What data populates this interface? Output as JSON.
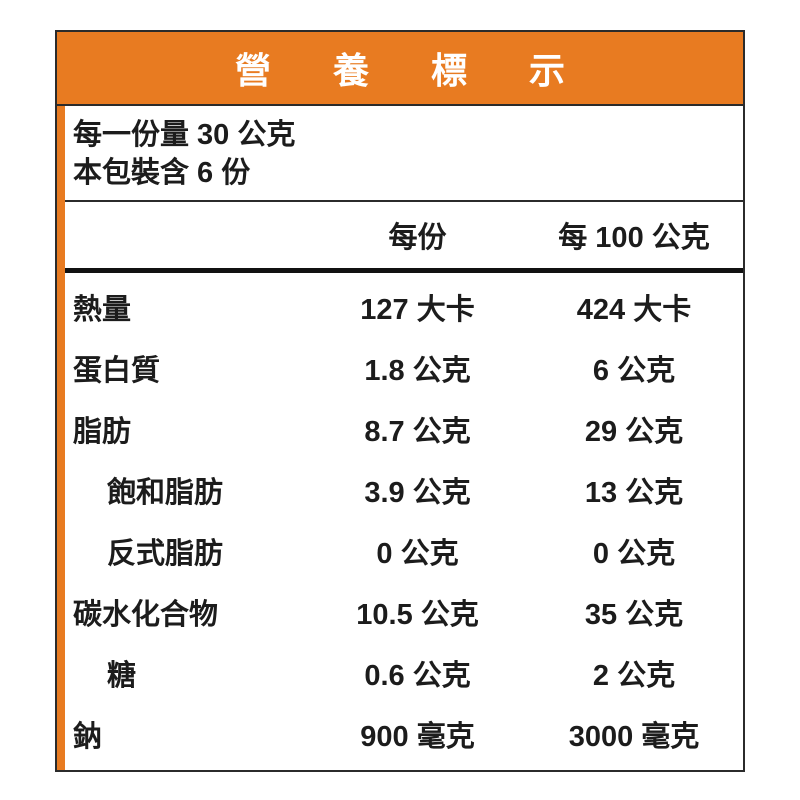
{
  "title": "營養標示",
  "serving_info": {
    "line1": "每一份量 30 公克",
    "line2": "本包裝含 6 份"
  },
  "columns": {
    "per_serving": "每份",
    "per_100g": "每 100 公克"
  },
  "rows": [
    {
      "label": "熱量",
      "indent": false,
      "per_serving": "127 大卡",
      "per_100g": "424 大卡"
    },
    {
      "label": "蛋白質",
      "indent": false,
      "per_serving": "1.8 公克",
      "per_100g": "6 公克"
    },
    {
      "label": "脂肪",
      "indent": false,
      "per_serving": "8.7 公克",
      "per_100g": "29 公克"
    },
    {
      "label": "飽和脂肪",
      "indent": true,
      "per_serving": "3.9 公克",
      "per_100g": "13 公克"
    },
    {
      "label": "反式脂肪",
      "indent": true,
      "per_serving": "0  公克",
      "per_100g": "0  公克"
    },
    {
      "label": "碳水化合物",
      "indent": false,
      "per_serving": "10.5 公克",
      "per_100g": "35 公克"
    },
    {
      "label": "糖",
      "indent": true,
      "per_serving": "0.6 公克",
      "per_100g": "2 公克"
    },
    {
      "label": "鈉",
      "indent": false,
      "per_serving": "900 毫克",
      "per_100g": "3000 毫克"
    }
  ],
  "colors": {
    "header_bg": "#e87b21",
    "accent_strip": "#e87b21",
    "border": "#2b2b2b",
    "text": "#1c1c1c",
    "title_text": "#ffffff"
  }
}
